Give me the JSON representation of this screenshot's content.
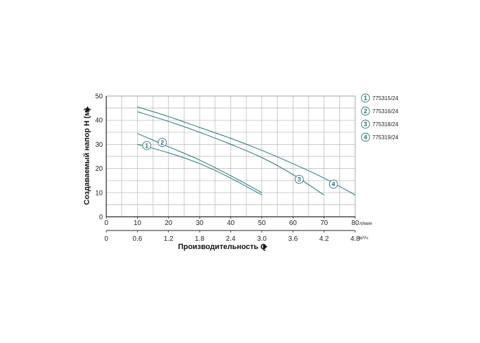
{
  "chart_data": {
    "type": "line",
    "ylabel": "Создаваемый напор H (м)",
    "xlabel": "Производительность Q",
    "y_ticks": [
      "0",
      "10",
      "20",
      "30",
      "40",
      "50"
    ],
    "x_ticks_flow": [
      "0",
      "10",
      "20",
      "30",
      "40",
      "50",
      "60",
      "70",
      "80"
    ],
    "x_ticks_m3h": [
      "0",
      "0.6",
      "1.2",
      "1.8",
      "2.4",
      "3.0",
      "3.6",
      "4.2",
      "4.8"
    ],
    "x_unit_flow": "л/мин",
    "x_unit_m3h": "м³/ч",
    "xlim": [
      0,
      80
    ],
    "ylim": [
      0,
      50
    ],
    "grid": true,
    "legend_position": "right",
    "line_color": "#2a6f78",
    "series": [
      {
        "name": "775315/24",
        "marker": "1",
        "x": [
          10,
          20,
          30,
          40,
          50
        ],
        "y": [
          30,
          26.5,
          22,
          16,
          9
        ],
        "marker_at": [
          13,
          29.5
        ]
      },
      {
        "name": "775316/24",
        "marker": "2",
        "x": [
          10,
          20,
          30,
          40,
          50
        ],
        "y": [
          34.5,
          29,
          23.5,
          17,
          10
        ],
        "marker_at": [
          18,
          30.8
        ]
      },
      {
        "name": "775318/24",
        "marker": "3",
        "x": [
          10,
          20,
          30,
          40,
          50,
          60,
          70
        ],
        "y": [
          43.5,
          39.5,
          35,
          30,
          24.5,
          17.5,
          9
        ],
        "marker_at": [
          62,
          15.5
        ]
      },
      {
        "name": "775319/24",
        "marker": "4",
        "x": [
          10,
          20,
          30,
          40,
          50,
          60,
          70,
          80
        ],
        "y": [
          45.5,
          41.5,
          37,
          32.5,
          27.5,
          22,
          16,
          9
        ],
        "marker_at": [
          73,
          13.5
        ]
      }
    ]
  }
}
